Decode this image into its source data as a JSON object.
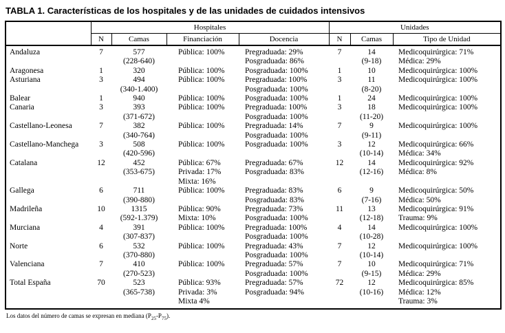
{
  "title": {
    "label": "TABLA 1.",
    "text": "Características de los hospitales y de las unidades de cuidados intensivos"
  },
  "table": {
    "group_headers": [
      "Hospitales",
      "Unidades"
    ],
    "columns": [
      "N",
      "Camas",
      "Financiación",
      "Docencia",
      "N",
      "Camas",
      "Tipo de Unidad"
    ],
    "rows": [
      {
        "region": "Andaluza",
        "hospitales": {
          "n": "7",
          "camas": [
            "577",
            "(228-640)"
          ],
          "financiacion": [
            "Pública: 100%"
          ],
          "docencia": [
            "Pregraduada: 29%",
            "Posgraduada: 86%"
          ]
        },
        "unidades": {
          "n": "7",
          "camas": [
            "14",
            "(9-18)"
          ],
          "tipo": [
            "Medicoquirúrgica: 71%",
            "Médica: 29%"
          ]
        }
      },
      {
        "region": "Aragonesa",
        "hospitales": {
          "n": "1",
          "camas": [
            "320"
          ],
          "financiacion": [
            "Pública: 100%"
          ],
          "docencia": [
            "Posgraduada: 100%"
          ]
        },
        "unidades": {
          "n": "1",
          "camas": [
            "10"
          ],
          "tipo": [
            "Medicoquirúrgica: 100%"
          ]
        }
      },
      {
        "region": "Asturiana",
        "hospitales": {
          "n": "3",
          "camas": [
            "494",
            "(340-1.400)"
          ],
          "financiacion": [
            "Pública: 100%"
          ],
          "docencia": [
            "Pregraduada: 100%",
            "Posgraduada: 100%"
          ]
        },
        "unidades": {
          "n": "3",
          "camas": [
            "11",
            "(8-20)"
          ],
          "tipo": [
            "Medicoquirúrgica: 100%"
          ]
        }
      },
      {
        "region": "Balear",
        "hospitales": {
          "n": "1",
          "camas": [
            "940"
          ],
          "financiacion": [
            "Pública: 100%"
          ],
          "docencia": [
            "Posgraduada: 100%"
          ]
        },
        "unidades": {
          "n": "1",
          "camas": [
            "24"
          ],
          "tipo": [
            "Medicoquirúrgica: 100%"
          ]
        }
      },
      {
        "region": "Canaria",
        "hospitales": {
          "n": "3",
          "camas": [
            "393",
            "(371-672)"
          ],
          "financiacion": [
            "Pública: 100%"
          ],
          "docencia": [
            "Pregraduada: 100%",
            "Posgraduada: 100%"
          ]
        },
        "unidades": {
          "n": "3",
          "camas": [
            "18",
            "(11-20)"
          ],
          "tipo": [
            "Medicoquirúrgica: 100%"
          ]
        }
      },
      {
        "region": "Castellano-Leonesa",
        "hospitales": {
          "n": "7",
          "camas": [
            "382",
            "(340-764)"
          ],
          "financiacion": [
            "Pública: 100%"
          ],
          "docencia": [
            "Pregraduada: 14%",
            "Posgraduada: 100%"
          ]
        },
        "unidades": {
          "n": "7",
          "camas": [
            "9",
            "(9-11)"
          ],
          "tipo": [
            "Medicoquirúrgica: 100%"
          ]
        }
      },
      {
        "region": "Castellano-Manchega",
        "hospitales": {
          "n": "3",
          "camas": [
            "508",
            "(420-596)"
          ],
          "financiacion": [
            "Pública: 100%"
          ],
          "docencia": [
            "Posgraduada: 100%"
          ]
        },
        "unidades": {
          "n": "3",
          "camas": [
            "12",
            "(10-14)"
          ],
          "tipo": [
            "Medicoquirúrgica: 66%",
            "Médica: 34%"
          ]
        }
      },
      {
        "region": "Catalana",
        "hospitales": {
          "n": "12",
          "camas": [
            "452",
            "(353-675)"
          ],
          "financiacion": [
            "Pública: 67%",
            "Privada: 17%",
            "Mixta: 16%"
          ],
          "docencia": [
            "Pregraduada: 67%",
            "Posgraduada: 83%"
          ]
        },
        "unidades": {
          "n": "12",
          "camas": [
            "14",
            "(12-16)"
          ],
          "tipo": [
            "Medicoquirúrgica: 92%",
            "Médica: 8%"
          ]
        }
      },
      {
        "region": "Gallega",
        "hospitales": {
          "n": "6",
          "camas": [
            "711",
            "(390-880)"
          ],
          "financiacion": [
            "Pública: 100%"
          ],
          "docencia": [
            "Pregraduada: 83%",
            "Posgraduada: 83%"
          ]
        },
        "unidades": {
          "n": "6",
          "camas": [
            "9",
            "(7-16)"
          ],
          "tipo": [
            "Medicoquirúrgica: 50%",
            "Médica: 50%"
          ]
        }
      },
      {
        "region": "Madrileña",
        "hospitales": {
          "n": "10",
          "camas": [
            "1315",
            "(592-1.379)"
          ],
          "financiacion": [
            "Pública: 90%",
            "Mixta: 10%"
          ],
          "docencia": [
            "Pregraduada: 73%",
            "Posgraduada: 100%"
          ]
        },
        "unidades": {
          "n": "11",
          "camas": [
            "13",
            "(12-18)"
          ],
          "tipo": [
            "Medicoquirúrgica: 91%",
            "Trauma: 9%"
          ]
        }
      },
      {
        "region": "Murciana",
        "hospitales": {
          "n": "4",
          "camas": [
            "391",
            "(307-837)"
          ],
          "financiacion": [
            "Pública: 100%"
          ],
          "docencia": [
            "Pregraduada: 100%",
            "Posgraduada: 100%"
          ]
        },
        "unidades": {
          "n": "4",
          "camas": [
            "14",
            "(10-28)"
          ],
          "tipo": [
            "Medicoquirúrgica: 100%"
          ]
        }
      },
      {
        "region": "Norte",
        "hospitales": {
          "n": "6",
          "camas": [
            "532",
            "(370-880)"
          ],
          "financiacion": [
            "Pública: 100%"
          ],
          "docencia": [
            "Pregraduada: 43%",
            "Posgraduada: 100%"
          ]
        },
        "unidades": {
          "n": "7",
          "camas": [
            "12",
            "(10-14)"
          ],
          "tipo": [
            "Medicoquirúrgica: 100%"
          ]
        }
      },
      {
        "region": "Valenciana",
        "hospitales": {
          "n": "7",
          "camas": [
            "410",
            "(270-523)"
          ],
          "financiacion": [
            "Pública: 100%"
          ],
          "docencia": [
            "Pregraduada: 57%",
            "Posgraduada: 100%"
          ]
        },
        "unidades": {
          "n": "7",
          "camas": [
            "10",
            "(9-15)"
          ],
          "tipo": [
            "Medicoquirúrgica: 71%",
            "Médica: 29%"
          ]
        }
      },
      {
        "region": "Total España",
        "hospitales": {
          "n": "70",
          "camas": [
            "523",
            "(365-738)"
          ],
          "financiacion": [
            "Pública: 93%",
            "Privada: 3%",
            "Mixta 4%"
          ],
          "docencia": [
            "Pregraduada: 57%",
            "Posgraduada: 94%"
          ]
        },
        "unidades": {
          "n": "72",
          "camas": [
            "12",
            "(10-16)"
          ],
          "tipo": [
            "Medicoquirúrgica: 85%",
            "Médica: 12%",
            "Trauma: 3%"
          ]
        }
      }
    ]
  },
  "footnote": {
    "text_before_sub": "Los datos del número de camas se expresan en mediana (P",
    "sub_low": "25",
    "text_between": "-P",
    "sub_high": "75",
    "text_after": ")."
  }
}
